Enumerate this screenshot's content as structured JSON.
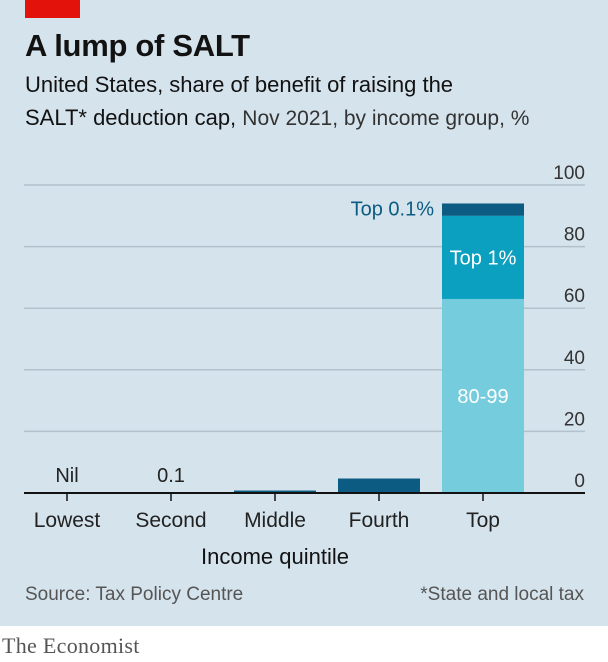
{
  "header": {
    "title": "A lump of SALT",
    "subtitle_line1": "United States, share of benefit of raising the",
    "subtitle_line2_strong": "SALT* deduction cap,",
    "subtitle_line2_light": "Nov 2021, by income group, %"
  },
  "footer": {
    "source": "Source: Tax Policy Centre",
    "note": "*State and local tax",
    "brand": "The Economist"
  },
  "chart_data": {
    "type": "bar",
    "stacked": true,
    "xlabel": "Income quintile",
    "ylabel": "",
    "ylim": [
      0,
      100
    ],
    "yticks": [
      0,
      20,
      40,
      60,
      80,
      100
    ],
    "grid": true,
    "y_axis_side": "right",
    "categories": [
      "Lowest",
      "Second",
      "Middle",
      "Fourth",
      "Top"
    ],
    "series": [
      {
        "name": "80-99",
        "values": [
          0,
          0.1,
          0.8,
          4.7,
          63
        ],
        "color": "#75ccdc"
      },
      {
        "name": "Top 1%",
        "values": [
          0,
          0,
          0,
          0,
          27
        ],
        "color": "#0b9fc0"
      },
      {
        "name": "Top 0.1%",
        "values": [
          0,
          0,
          0,
          0,
          4
        ],
        "color": "#0c5b82"
      }
    ],
    "lower_quintile_color": "#0c5b82",
    "value_labels": [
      {
        "category": "Lowest",
        "text": "Nil"
      },
      {
        "category": "Second",
        "text": "0.1"
      }
    ]
  },
  "colors": {
    "background": "#d5e3ec",
    "accent_red": "#e3120b",
    "gridline": "#b2c2cc",
    "axis": "#121212"
  }
}
